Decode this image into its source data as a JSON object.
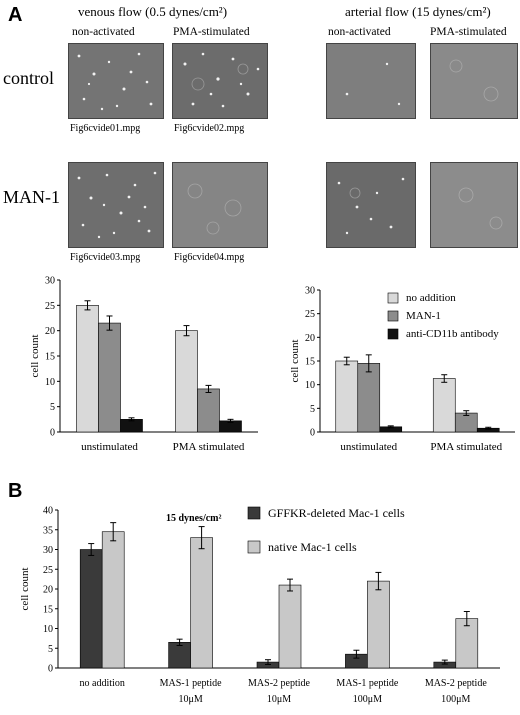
{
  "figure": {
    "panel_a": {
      "letter": "A",
      "venous_title": "venous flow (0.5 dynes/cm²)",
      "arterial_title": "arterial flow (15 dynes/cm²)",
      "col_non_activated": "non-activated",
      "col_pma": "PMA-stimulated",
      "row_control": "control",
      "row_man1": "MAN-1",
      "video_captions": [
        "Fig6cvide01.mpg",
        "Fig6cvide02.mpg",
        "Fig6cvide03.mpg",
        "Fig6cvide04.mpg"
      ]
    },
    "panel_b": {
      "letter": "B"
    }
  },
  "chart_data": [
    {
      "type": "bar",
      "panel": "A-venous",
      "categories": [
        "unstimulated",
        "PMA stimulated"
      ],
      "series": [
        {
          "name": "no addition",
          "values": [
            25.0,
            20.0
          ],
          "errors": [
            0.9,
            1.0
          ],
          "color": "#d9d9d9"
        },
        {
          "name": "MAN-1",
          "values": [
            21.5,
            8.5
          ],
          "errors": [
            1.4,
            0.7
          ],
          "color": "#8c8c8c"
        },
        {
          "name": "anti-CD11b antibody",
          "values": [
            2.5,
            2.2
          ],
          "errors": [
            0.3,
            0.3
          ],
          "color": "#111111"
        }
      ],
      "ylabel": "cell count",
      "ylim": [
        0,
        30
      ],
      "yticks": [
        0,
        5,
        10,
        15,
        20,
        25,
        30
      ]
    },
    {
      "type": "bar",
      "panel": "A-arterial",
      "categories": [
        "unstimulated",
        "PMA stimulated"
      ],
      "series": [
        {
          "name": "no addition",
          "values": [
            15.0,
            11.3
          ],
          "errors": [
            0.8,
            0.8
          ],
          "color": "#d9d9d9"
        },
        {
          "name": "MAN-1",
          "values": [
            14.5,
            4.0
          ],
          "errors": [
            1.8,
            0.5
          ],
          "color": "#8c8c8c"
        },
        {
          "name": "anti-CD11b antibody",
          "values": [
            1.1,
            0.8
          ],
          "errors": [
            0.2,
            0.2
          ],
          "color": "#111111"
        }
      ],
      "ylabel": "cell count",
      "ylim": [
        0,
        30
      ],
      "yticks": [
        0,
        5,
        10,
        15,
        20,
        25,
        30
      ],
      "legend_position": "top-right"
    },
    {
      "type": "bar",
      "panel": "B",
      "title": "15 dynes/cm²",
      "categories": [
        [
          "no addition"
        ],
        [
          "MAS-1 peptide",
          "10μM"
        ],
        [
          "MAS-2 peptide",
          "10μM"
        ],
        [
          "MAS-1 peptide",
          "100μM"
        ],
        [
          "MAS-2 peptide",
          "100μM"
        ]
      ],
      "series": [
        {
          "name": "GFFKR-deleted Mac-1 cells",
          "values": [
            30.0,
            6.5,
            1.5,
            3.5,
            1.5
          ],
          "errors": [
            1.5,
            0.8,
            0.6,
            1.0,
            0.5
          ],
          "color": "#3a3a3a"
        },
        {
          "name": "native Mac-1 cells",
          "values": [
            34.5,
            33.0,
            21.0,
            22.0,
            12.5
          ],
          "errors": [
            2.3,
            2.8,
            1.5,
            2.2,
            1.8
          ],
          "color": "#c8c8c8"
        }
      ],
      "ylabel": "cell count",
      "ylim": [
        0,
        40
      ],
      "yticks": [
        0,
        5,
        10,
        15,
        20,
        25,
        30,
        35,
        40
      ],
      "legend_position": "top-right"
    }
  ]
}
